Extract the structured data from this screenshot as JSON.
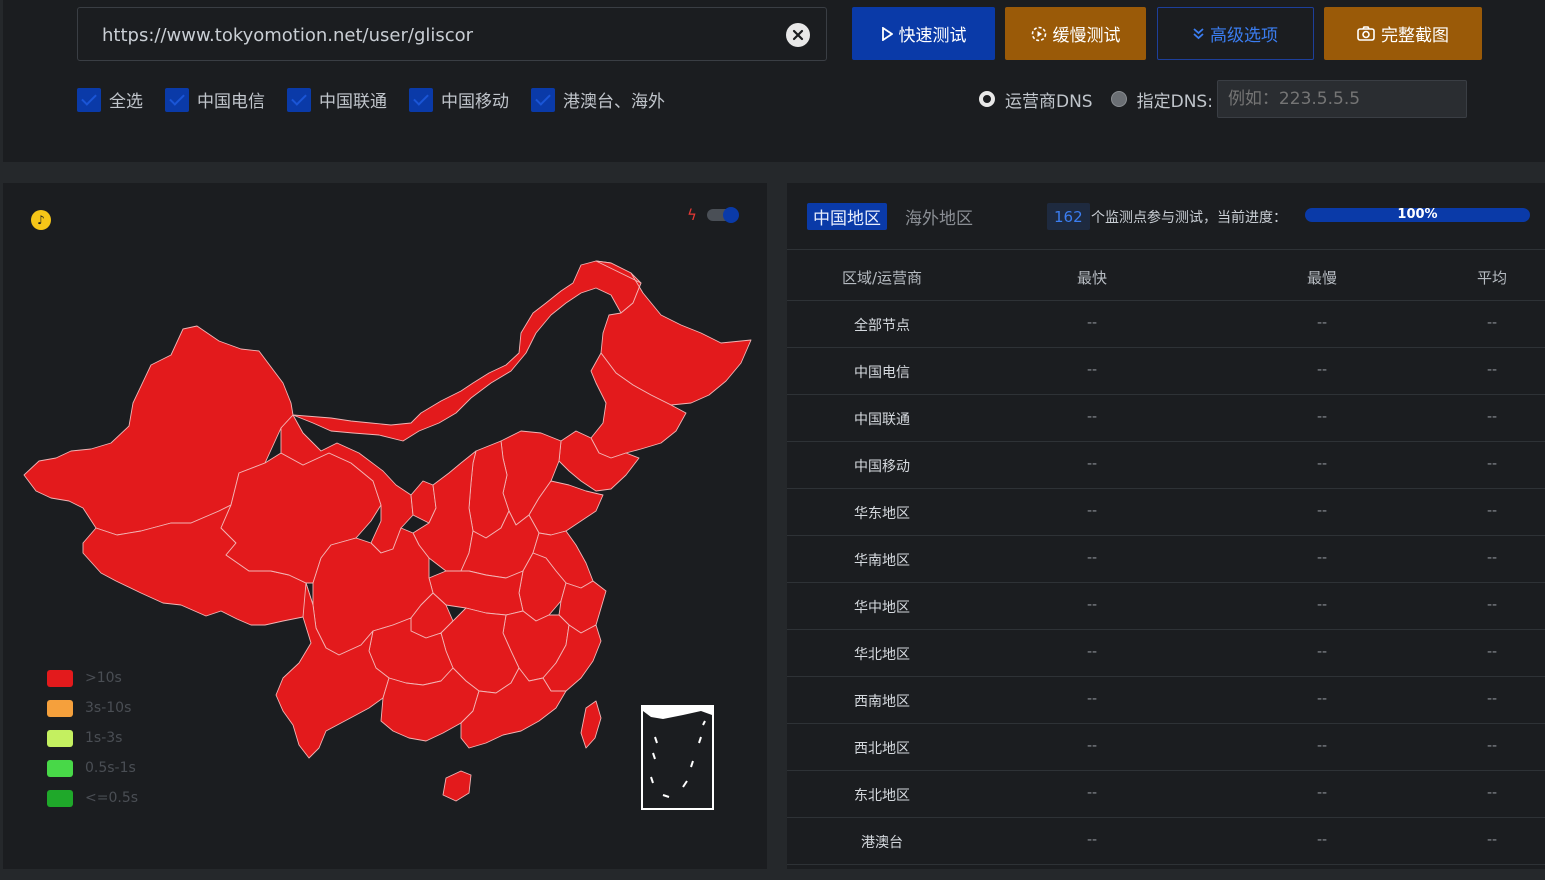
{
  "search": {
    "url_value": "https://www.tokyomotion.net/user/gliscor",
    "clear_icon": "close-circle-icon"
  },
  "buttons": {
    "quick_test": "快速测试",
    "slow_test": "缓慢测试",
    "advanced": "高级选项",
    "screenshot": "完整截图"
  },
  "filters": [
    {
      "label": "全选",
      "checked": true
    },
    {
      "label": "中国电信",
      "checked": true
    },
    {
      "label": "中国联通",
      "checked": true
    },
    {
      "label": "中国移动",
      "checked": true
    },
    {
      "label": "港澳台、海外",
      "checked": true
    }
  ],
  "dns": {
    "option_isp": "运营商DNS",
    "option_custom": "指定DNS:",
    "custom_placeholder": "例如：223.5.5.5",
    "selected": "运营商DNS"
  },
  "map": {
    "legend": [
      {
        "label": ">10s",
        "color": "#e31a1c"
      },
      {
        "label": "3s-10s",
        "color": "#f5a03c"
      },
      {
        "label": "1s-3s",
        "color": "#c4f060"
      },
      {
        "label": "0.5s-1s",
        "color": "#48d848"
      },
      {
        "label": "<=0.5s",
        "color": "#1fa82a"
      }
    ],
    "fill_color": "#e31a1c",
    "toggle_on": true
  },
  "results": {
    "tab_china": "中国地区",
    "tab_overseas": "海外地区",
    "node_count": "162",
    "progress_text": "个监测点参与测试，当前进度：",
    "progress_percent": "100%",
    "progress_value": 100,
    "headers": [
      "区域/运营商",
      "最快",
      "最慢",
      "平均"
    ],
    "rows": [
      {
        "region": "全部节点",
        "fastest": "--",
        "slowest": "--",
        "average": "--"
      },
      {
        "region": "中国电信",
        "fastest": "--",
        "slowest": "--",
        "average": "--"
      },
      {
        "region": "中国联通",
        "fastest": "--",
        "slowest": "--",
        "average": "--"
      },
      {
        "region": "中国移动",
        "fastest": "--",
        "slowest": "--",
        "average": "--"
      },
      {
        "region": "华东地区",
        "fastest": "--",
        "slowest": "--",
        "average": "--"
      },
      {
        "region": "华南地区",
        "fastest": "--",
        "slowest": "--",
        "average": "--"
      },
      {
        "region": "华中地区",
        "fastest": "--",
        "slowest": "--",
        "average": "--"
      },
      {
        "region": "华北地区",
        "fastest": "--",
        "slowest": "--",
        "average": "--"
      },
      {
        "region": "西南地区",
        "fastest": "--",
        "slowest": "--",
        "average": "--"
      },
      {
        "region": "西北地区",
        "fastest": "--",
        "slowest": "--",
        "average": "--"
      },
      {
        "region": "东北地区",
        "fastest": "--",
        "slowest": "--",
        "average": "--"
      },
      {
        "region": "港澳台",
        "fastest": "--",
        "slowest": "--",
        "average": "--"
      }
    ]
  }
}
